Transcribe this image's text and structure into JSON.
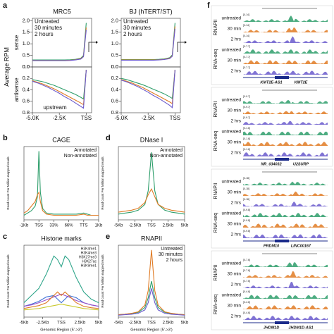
{
  "panel_labels": [
    "a",
    "b",
    "c",
    "d",
    "e",
    "f"
  ],
  "chart_data": [
    {
      "type": "line",
      "title": "MRC5",
      "ylabel": "Average RPM",
      "side_label": "sense",
      "legend": "upper left",
      "x": [
        -5000,
        -4500,
        -4000,
        -3500,
        -3000,
        -2500,
        -2000,
        -1500,
        -1000,
        -500,
        -250,
        0
      ],
      "xlim": [
        -5000,
        500
      ],
      "ylim": [
        0,
        2.1
      ],
      "yticks": [
        {
          "value": 0,
          "label": "0.0"
        },
        0.5,
        {
          "value": 1,
          "label": "1.0"
        },
        1.5,
        {
          "value": 2,
          "label": "2.0"
        }
      ],
      "series": [
        {
          "name": "Untreated",
          "color": "#2e9e6b",
          "values": [
            0.3,
            0.3,
            0.3,
            0.3,
            0.3,
            0.3,
            0.3,
            0.31,
            0.33,
            0.38,
            0.5,
            1.9
          ]
        },
        {
          "name": "30 minutes",
          "color": "#e07b24",
          "values": [
            0.28,
            0.28,
            0.28,
            0.28,
            0.28,
            0.28,
            0.28,
            0.29,
            0.31,
            0.36,
            0.46,
            1.7
          ]
        },
        {
          "name": "2 hours",
          "color": "#6a5acd",
          "values": [
            0.27,
            0.27,
            0.27,
            0.27,
            0.27,
            0.27,
            0.27,
            0.28,
            0.3,
            0.34,
            0.44,
            1.6
          ]
        }
      ]
    },
    {
      "type": "line",
      "side_label": "antisense",
      "annotation": "upstream",
      "invert": true,
      "x": [
        -5000,
        -4500,
        -4000,
        -3500,
        -3000,
        -2500,
        -2000,
        -1500,
        -1000,
        -500,
        -250,
        0
      ],
      "xlim": [
        -5000,
        500
      ],
      "xticks": [
        {
          "value": -5000,
          "label": "-5.0K"
        },
        {
          "value": -2500,
          "label": "-2.5K"
        },
        {
          "value": 0,
          "label": "TSS"
        }
      ],
      "ylim": [
        0,
        0.8
      ],
      "yticks": [
        {
          "value": 0,
          "label": "0.0"
        },
        0.2,
        0.4,
        0.6,
        0.8
      ],
      "series": [
        {
          "name": "Untreated",
          "color": "#2e9e6b",
          "values": [
            0.22,
            0.24,
            0.26,
            0.29,
            0.32,
            0.36,
            0.4,
            0.44,
            0.48,
            0.53,
            0.56,
            0.05
          ]
        },
        {
          "name": "30 minutes",
          "color": "#e07b24",
          "values": [
            0.24,
            0.27,
            0.3,
            0.34,
            0.38,
            0.43,
            0.48,
            0.53,
            0.58,
            0.63,
            0.66,
            0.05
          ]
        },
        {
          "name": "2 hours",
          "color": "#6a5acd",
          "values": [
            0.25,
            0.28,
            0.32,
            0.36,
            0.41,
            0.46,
            0.52,
            0.57,
            0.63,
            0.69,
            0.72,
            0.05
          ]
        }
      ]
    },
    {
      "type": "line",
      "title": "BJ (hTERT/ST)",
      "legend": "upper left",
      "x": [
        -5000,
        -4500,
        -4000,
        -3500,
        -3000,
        -2500,
        -2000,
        -1500,
        -1000,
        -500,
        -250,
        0
      ],
      "xlim": [
        -5000,
        500
      ],
      "ylim": [
        0,
        2.1
      ],
      "yticks": [
        {
          "value": 0,
          "label": "0.0"
        },
        0.5,
        {
          "value": 1,
          "label": "1.0"
        },
        1.5,
        {
          "value": 2,
          "label": "2.0"
        }
      ],
      "series": [
        {
          "name": "Untreated",
          "color": "#2e9e6b",
          "values": [
            0.32,
            0.32,
            0.32,
            0.32,
            0.32,
            0.32,
            0.32,
            0.33,
            0.35,
            0.4,
            0.52,
            1.9
          ]
        },
        {
          "name": "30 minutes",
          "color": "#e07b24",
          "values": [
            0.3,
            0.3,
            0.3,
            0.3,
            0.3,
            0.3,
            0.3,
            0.31,
            0.33,
            0.38,
            0.48,
            1.75
          ]
        },
        {
          "name": "2 hours",
          "color": "#6a5acd",
          "values": [
            0.29,
            0.29,
            0.29,
            0.29,
            0.29,
            0.29,
            0.29,
            0.3,
            0.32,
            0.36,
            0.46,
            1.65
          ]
        }
      ]
    },
    {
      "type": "line",
      "invert": true,
      "x": [
        -5000,
        -4500,
        -4000,
        -3500,
        -3000,
        -2500,
        -2000,
        -1500,
        -1000,
        -500,
        -250,
        0
      ],
      "xlim": [
        -5000,
        500
      ],
      "xticks": [
        {
          "value": -5000,
          "label": "-5.0K"
        },
        {
          "value": -2500,
          "label": "-2.5K"
        },
        {
          "value": 0,
          "label": "TSS"
        }
      ],
      "ylim": [
        0,
        0.8
      ],
      "yticks": [
        {
          "value": 0,
          "label": "0.0"
        },
        0.2,
        0.4,
        0.6,
        0.8
      ],
      "series": [
        {
          "name": "Untreated",
          "color": "#2e9e6b",
          "values": [
            0.2,
            0.22,
            0.25,
            0.28,
            0.31,
            0.35,
            0.39,
            0.43,
            0.47,
            0.52,
            0.55,
            0.05
          ]
        },
        {
          "name": "30 minutes",
          "color": "#e07b24",
          "values": [
            0.22,
            0.25,
            0.28,
            0.32,
            0.36,
            0.41,
            0.46,
            0.51,
            0.56,
            0.61,
            0.64,
            0.05
          ]
        },
        {
          "name": "2 hours",
          "color": "#6a5acd",
          "values": [
            0.23,
            0.26,
            0.3,
            0.34,
            0.39,
            0.44,
            0.5,
            0.55,
            0.61,
            0.67,
            0.71,
            0.05
          ]
        }
      ]
    },
    {
      "type": "line",
      "title": "CAGE",
      "ylabel": "Read count Per Million mapped reads",
      "legend": "upper right",
      "x": [
        0,
        5,
        10,
        15,
        18,
        20,
        22,
        25,
        30,
        40,
        50,
        60,
        70,
        80,
        85,
        90,
        100
      ],
      "xlim": [
        0,
        100
      ],
      "xticks": [
        {
          "value": 0,
          "label": "-1Kb"
        },
        {
          "value": 20,
          "label": "TSS"
        },
        {
          "value": 40,
          "label": "33%"
        },
        {
          "value": 60,
          "label": "66%"
        },
        {
          "value": 80,
          "label": "TTS"
        },
        {
          "value": 100,
          "label": "1Kb"
        }
      ],
      "ylim": [
        0,
        32
      ],
      "series": [
        {
          "name": "Annotated",
          "color": "#2e9e6b",
          "values": [
            2,
            3,
            4,
            6,
            10,
            30,
            12,
            5,
            3,
            2.5,
            2.5,
            2.5,
            2.5,
            3,
            2.5,
            2,
            2
          ]
        },
        {
          "name": "Non-annotated",
          "color": "#e07b24",
          "values": [
            3,
            4,
            6,
            8,
            11,
            12,
            8,
            4,
            2.5,
            2,
            2,
            2,
            2,
            2.5,
            2,
            2,
            2
          ]
        }
      ]
    },
    {
      "type": "line",
      "title": "DNase I",
      "ylabel": "Read count Per Million mapped reads",
      "legend": "upper right",
      "x": [
        -5000,
        -4000,
        -3000,
        -2000,
        -1000,
        -500,
        0,
        500,
        1000,
        2000,
        3000,
        4000,
        5000
      ],
      "xlim": [
        -5000,
        5000
      ],
      "xticks": [
        {
          "value": -5000,
          "label": "-5Kb"
        },
        {
          "value": -2500,
          "label": "-2.5Kb"
        },
        {
          "value": 0,
          "label": "TSS"
        },
        {
          "value": 2500,
          "label": "2.5Kb"
        },
        {
          "value": 5000,
          "label": "5Kb"
        }
      ],
      "ylim": [
        0,
        3.8
      ],
      "series": [
        {
          "name": "Annotated",
          "color": "#2e9e6b",
          "values": [
            0.3,
            0.35,
            0.4,
            0.5,
            0.8,
            1.5,
            3.5,
            1.5,
            0.8,
            0.5,
            0.4,
            0.35,
            0.3
          ]
        },
        {
          "name": "Non-annotated",
          "color": "#e07b24",
          "values": [
            0.4,
            0.45,
            0.5,
            0.6,
            0.9,
            1.3,
            1.6,
            1.2,
            0.8,
            0.6,
            0.5,
            0.45,
            0.4
          ]
        }
      ]
    },
    {
      "type": "line",
      "title": "Histone marks",
      "ylabel": "Read count Per Million mapped reads",
      "xlabel": "Genomic Region (5'->3')",
      "legend": "upper right",
      "x": [
        -5000,
        -4000,
        -3000,
        -2000,
        -1000,
        -500,
        0,
        500,
        1000,
        2000,
        3000,
        4000,
        5000
      ],
      "xlim": [
        -5000,
        5000
      ],
      "xticks": [
        {
          "value": -5000,
          "label": "-5Kb"
        },
        {
          "value": -2500,
          "label": "-2.5Kb"
        },
        {
          "value": 0,
          "label": "TSS"
        },
        {
          "value": 2500,
          "label": "2.5Kb"
        },
        {
          "value": 5000,
          "label": "5Kb"
        }
      ],
      "ylim": [
        0,
        1
      ],
      "series": [
        {
          "name": "H3K4me1",
          "color": "#3b6fd6",
          "values": [
            0.15,
            0.18,
            0.22,
            0.28,
            0.3,
            0.25,
            0.2,
            0.25,
            0.3,
            0.27,
            0.2,
            0.17,
            0.15
          ]
        },
        {
          "name": "H3K4me3",
          "color": "#2ea58a",
          "values": [
            0.2,
            0.3,
            0.4,
            0.6,
            0.85,
            0.8,
            0.7,
            0.85,
            0.8,
            0.55,
            0.35,
            0.25,
            0.2
          ]
        },
        {
          "name": "H3K27me3",
          "color": "#9b4fc9",
          "values": [
            0.15,
            0.17,
            0.2,
            0.24,
            0.28,
            0.3,
            0.32,
            0.3,
            0.28,
            0.23,
            0.2,
            0.17,
            0.15
          ]
        },
        {
          "name": "H3K27ac",
          "color": "#e07b24",
          "values": [
            0.12,
            0.14,
            0.16,
            0.2,
            0.3,
            0.35,
            0.3,
            0.35,
            0.3,
            0.2,
            0.15,
            0.13,
            0.12
          ]
        },
        {
          "name": "H3K9me1",
          "color": "#c9c92e",
          "values": [
            0.1,
            0.11,
            0.12,
            0.14,
            0.16,
            0.17,
            0.18,
            0.17,
            0.16,
            0.14,
            0.12,
            0.11,
            0.1
          ]
        }
      ]
    },
    {
      "type": "line",
      "title": "RNAPII",
      "ylabel": "Read count Per Million mapped reads",
      "xlabel": "Genomic Region (5'->3')",
      "legend": "upper right",
      "x": [
        -5000,
        -4000,
        -3000,
        -2000,
        -1000,
        -500,
        0,
        500,
        1000,
        2000,
        3000,
        4000,
        5000
      ],
      "xlim": [
        -5000,
        5000
      ],
      "xticks": [
        {
          "value": -5000,
          "label": "-5Kb"
        },
        {
          "value": -2500,
          "label": "-2.5Kb"
        },
        {
          "value": 0,
          "label": "TSS"
        },
        {
          "value": 2500,
          "label": "2.5Kb"
        },
        {
          "value": 5000,
          "label": "5Kb"
        }
      ],
      "ylim": [
        0,
        3
      ],
      "series": [
        {
          "name": "Untreated",
          "color": "#2e9e6b",
          "values": [
            0.1,
            0.12,
            0.15,
            0.2,
            0.4,
            0.8,
            1.5,
            0.8,
            0.4,
            0.2,
            0.15,
            0.12,
            0.1
          ]
        },
        {
          "name": "30 minutes",
          "color": "#e07b24",
          "values": [
            0.1,
            0.12,
            0.16,
            0.22,
            0.5,
            1.1,
            2.8,
            1.1,
            0.5,
            0.22,
            0.16,
            0.12,
            0.1
          ]
        },
        {
          "name": "2 hours",
          "color": "#6a5acd",
          "values": [
            0.08,
            0.1,
            0.12,
            0.16,
            0.3,
            0.6,
            1.2,
            0.6,
            0.3,
            0.16,
            0.12,
            0.1,
            0.08
          ]
        }
      ]
    }
  ],
  "browser": {
    "groups": [
      {
        "assays": [
          "RNAPII",
          "RNA-seq"
        ],
        "tracks": [
          "untreated",
          "30 min",
          "2 hrs",
          "untreated",
          "30 min",
          "2 hrs"
        ],
        "scales": [
          "[0-14]",
          "[0-14]",
          "[0-14]",
          "[0-7.7]",
          "[0-7.7]",
          "[0-7.7]"
        ],
        "genes": [
          "KMT2E-AS1",
          "KMT2E"
        ]
      },
      {
        "assays": [
          "RNAPII",
          "RNA-seq"
        ],
        "tracks": [
          "untreated",
          "30 min",
          "2 hrs",
          "untreated",
          "30 min",
          "2 hrs"
        ],
        "scales": [
          "[0-9.7]",
          "[0-9.7]",
          "[0-9.7]",
          "[0-1.6]",
          "[0-1.6]",
          "[0-1.6]"
        ],
        "genes": [
          "NR_034032",
          "U2SURP"
        ]
      },
      {
        "assays": [
          "RNAPII",
          "RNA-seq"
        ],
        "tracks": [
          "untreated",
          "30 min",
          "2 hrs",
          "untreated",
          "30 min",
          "2 hrs"
        ],
        "scales": [
          "[0-18]",
          "[0-18]",
          "[0-18]",
          "[0-9.8]",
          "[0-9.8]",
          "[0-9.8]"
        ],
        "genes": [
          "PRDM10",
          "LINC00167"
        ]
      },
      {
        "assays": [
          "RNAPII",
          "RNA-seq"
        ],
        "tracks": [
          "untreated",
          "30 min",
          "2 hrs",
          "untreated",
          "30 min",
          "2 hrs"
        ],
        "scales": [
          "[0-7.6]",
          "[0-7.6]",
          "[0-7.6]",
          "[0-4.6]",
          "[0-4.6]",
          "[0-4.6]"
        ],
        "genes": [
          "JHDM1D",
          "JHDM1D-AS1"
        ]
      }
    ]
  }
}
